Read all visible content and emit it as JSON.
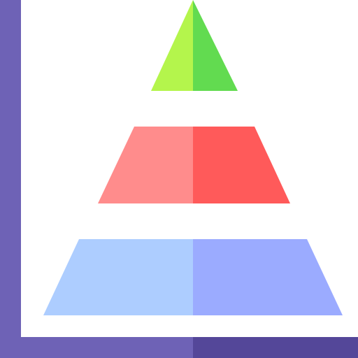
{
  "icon": {
    "name": "pyramid-chart-icon",
    "colors": {
      "background": "#ffffff",
      "frame_left": "#6e62b6",
      "frame_bottom_left": "#6e62b6",
      "frame_bottom_right": "#544799",
      "top_left": "#b4f54c",
      "top_right": "#62db50",
      "middle_left": "#ff8c8c",
      "middle_right": "#ff5a5a",
      "bottom_left": "#adcdff",
      "bottom_right": "#9babff"
    }
  }
}
